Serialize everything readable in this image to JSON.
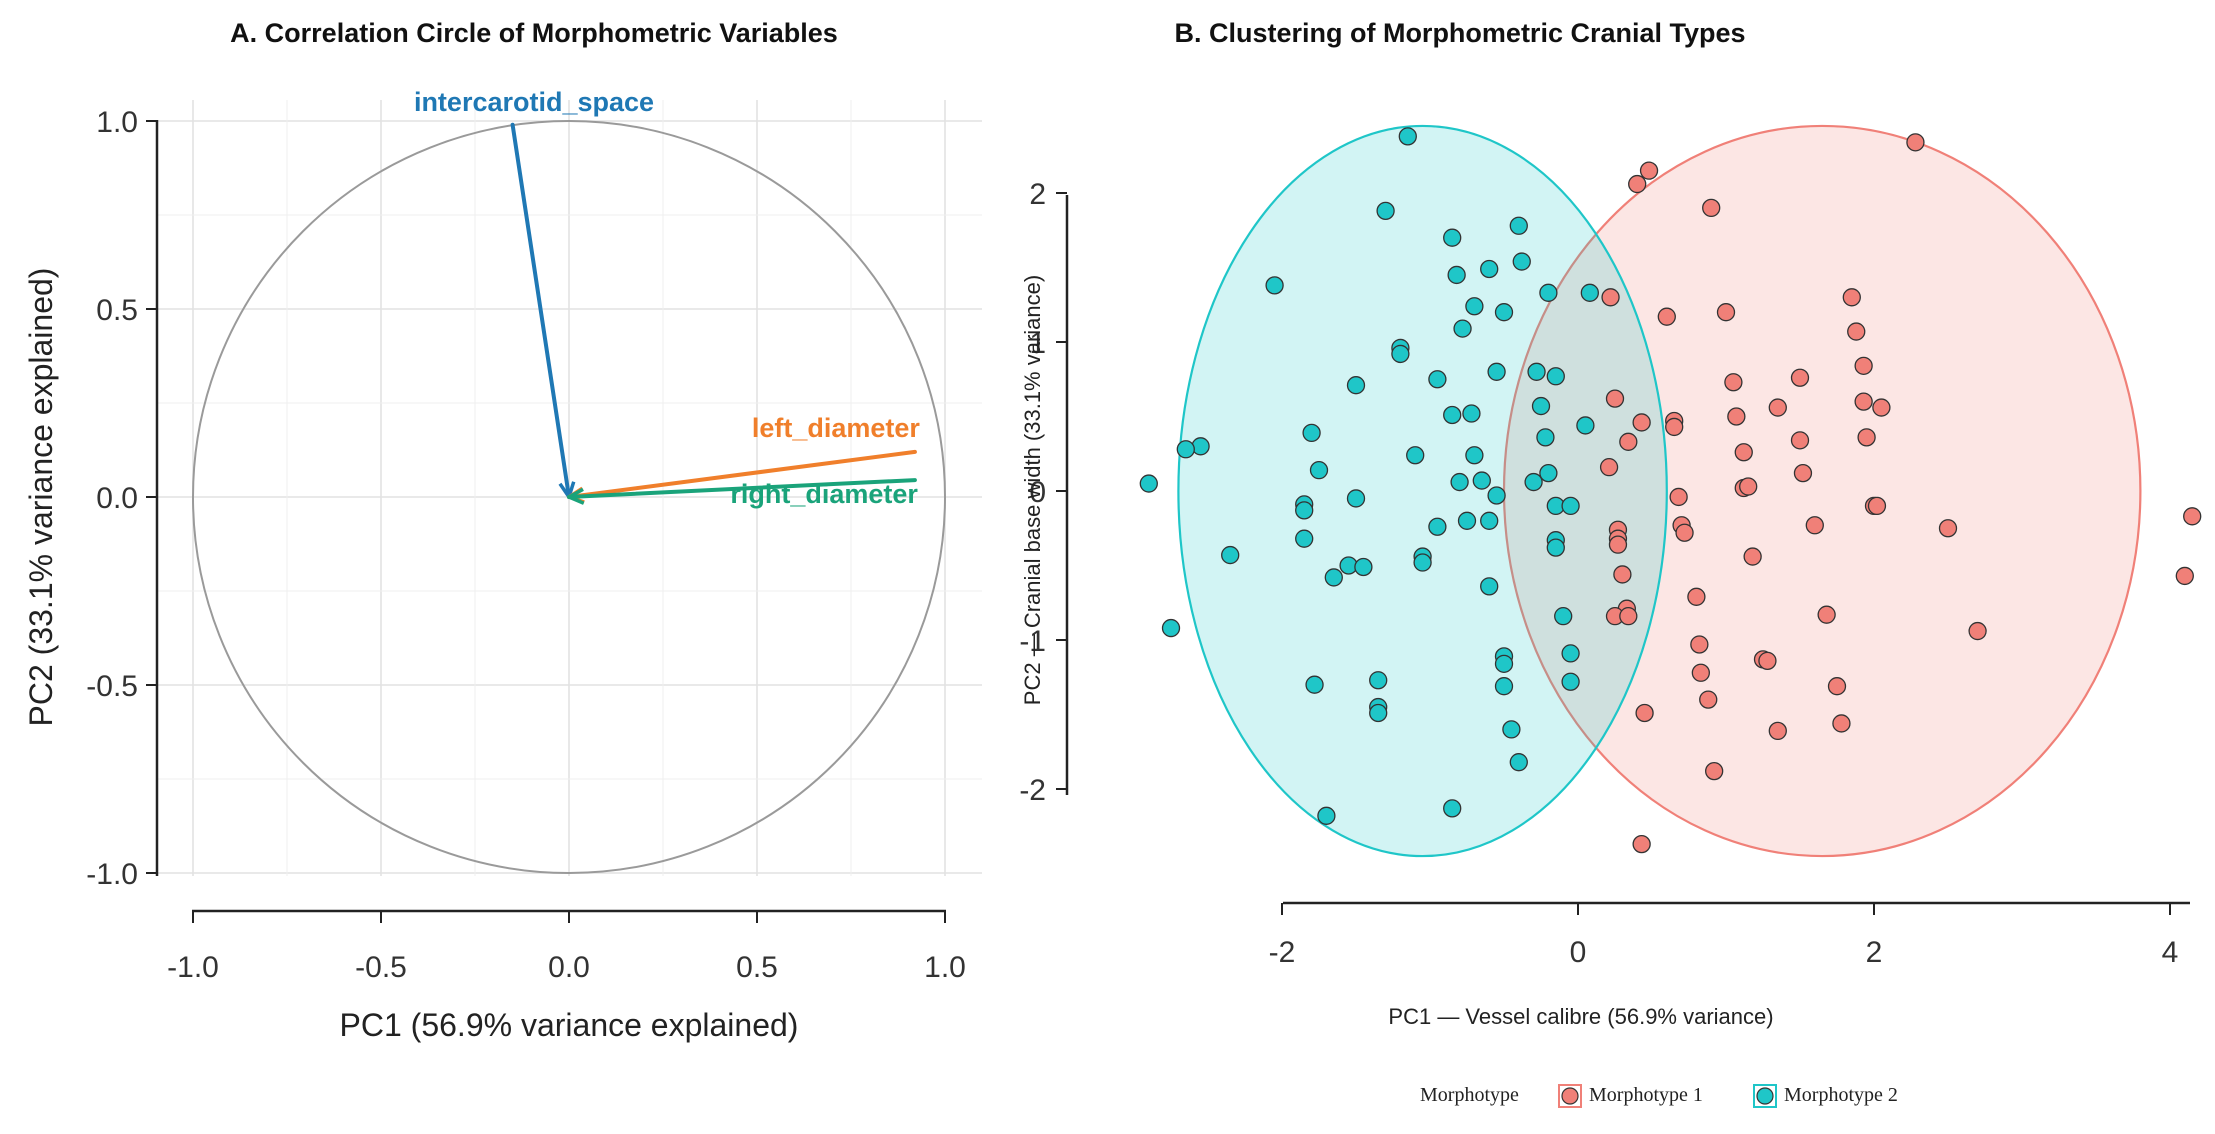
{
  "chart_data": [
    {
      "type": "scatter",
      "subtype": "correlation-circle",
      "title": "A. Correlation Circle of Morphometric Variables",
      "xlabel": "PC1 (56.9% variance explained)",
      "ylabel": "PC2 (33.1% variance explained)",
      "xlim": [
        -1.1,
        1.1
      ],
      "ylim": [
        -1.0,
        1.0
      ],
      "x_ticks": [
        "-1.0",
        "-0.5",
        "0.0",
        "0.5",
        "1.0"
      ],
      "y_ticks": [
        "1.0",
        "0.5",
        "0.0",
        "-0.5",
        "-1.0"
      ],
      "grid": true,
      "vectors": [
        {
          "name": "intercarotid_space",
          "x": -0.15,
          "y": 0.99,
          "color": "#1f78b4"
        },
        {
          "name": "left_diameter",
          "x": 0.92,
          "y": 0.12,
          "color": "#f07f2b"
        },
        {
          "name": "right_diameter",
          "x": 0.92,
          "y": 0.045,
          "color": "#1aa37a"
        }
      ]
    },
    {
      "type": "scatter",
      "title": "B. Clustering of Morphometric Cranial Types",
      "xlabel": "PC1 — Vessel calibre (56.9% variance)",
      "ylabel": "PC2 — Cranial base width (33.1% variance)",
      "xlim": [
        -3.0,
        4.2
      ],
      "ylim": [
        -2.5,
        2.5
      ],
      "x_ticks": [
        "-2",
        "0",
        "2",
        "4"
      ],
      "y_ticks": [
        "2",
        "1",
        "0",
        "-1",
        "-2"
      ],
      "grid": false,
      "legend": {
        "title": "Morphotype",
        "position": "bottom"
      },
      "series": [
        {
          "name": "Morphotype 1",
          "color": "#f08078",
          "ellipse": {
            "cx": 1.65,
            "cy": 0.0,
            "rx": 2.15,
            "ry": 2.45
          },
          "points": [
            [
              2.28,
              2.34
            ],
            [
              0.4,
              2.06
            ],
            [
              0.48,
              2.15
            ],
            [
              0.9,
              1.9
            ],
            [
              1.0,
              1.2
            ],
            [
              0.22,
              1.3
            ],
            [
              1.85,
              1.3
            ],
            [
              1.88,
              1.07
            ],
            [
              0.6,
              1.17
            ],
            [
              1.05,
              0.73
            ],
            [
              1.5,
              0.76
            ],
            [
              1.93,
              0.84
            ],
            [
              0.25,
              0.62
            ],
            [
              1.07,
              0.5
            ],
            [
              1.93,
              0.6
            ],
            [
              2.05,
              0.56
            ],
            [
              1.35,
              0.56
            ],
            [
              0.43,
              0.46
            ],
            [
              0.65,
              0.47
            ],
            [
              1.5,
              0.34
            ],
            [
              1.95,
              0.36
            ],
            [
              0.34,
              0.33
            ],
            [
              0.65,
              0.43
            ],
            [
              1.12,
              0.26
            ],
            [
              1.52,
              0.12
            ],
            [
              0.21,
              0.16
            ],
            [
              1.12,
              0.02
            ],
            [
              1.15,
              0.03
            ],
            [
              0.68,
              -0.04
            ],
            [
              2.0,
              -0.1
            ],
            [
              2.02,
              -0.1
            ],
            [
              1.6,
              -0.23
            ],
            [
              0.27,
              -0.26
            ],
            [
              0.27,
              -0.32
            ],
            [
              0.7,
              -0.23
            ],
            [
              0.72,
              -0.28
            ],
            [
              2.5,
              -0.25
            ],
            [
              0.27,
              -0.36
            ],
            [
              0.3,
              -0.56
            ],
            [
              1.18,
              -0.44
            ],
            [
              0.8,
              -0.71
            ],
            [
              0.33,
              -0.79
            ],
            [
              0.25,
              -0.84
            ],
            [
              0.34,
              -0.84
            ],
            [
              1.68,
              -0.83
            ],
            [
              1.25,
              -1.13
            ],
            [
              1.28,
              -1.14
            ],
            [
              0.82,
              -1.03
            ],
            [
              2.7,
              -0.94
            ],
            [
              0.83,
              -1.22
            ],
            [
              1.75,
              -1.31
            ],
            [
              0.88,
              -1.4
            ],
            [
              0.45,
              -1.49
            ],
            [
              1.78,
              -1.56
            ],
            [
              1.35,
              -1.61
            ],
            [
              0.92,
              -1.88
            ],
            [
              0.43,
              -2.37
            ],
            [
              4.15,
              -0.17
            ],
            [
              4.1,
              -0.57
            ]
          ]
        },
        {
          "name": "Morphotype 2",
          "color": "#1fc6c8",
          "ellipse": {
            "cx": -1.05,
            "cy": 0.0,
            "rx": 1.65,
            "ry": 2.45
          },
          "points": [
            [
              -1.15,
              2.38
            ],
            [
              -1.3,
              1.88
            ],
            [
              -0.85,
              1.7
            ],
            [
              -0.4,
              1.78
            ],
            [
              -0.38,
              1.54
            ],
            [
              -0.82,
              1.45
            ],
            [
              -0.6,
              1.49
            ],
            [
              -2.05,
              1.38
            ],
            [
              -0.2,
              1.33
            ],
            [
              0.08,
              1.33
            ],
            [
              -0.7,
              1.24
            ],
            [
              -0.5,
              1.2
            ],
            [
              -0.78,
              1.09
            ],
            [
              -1.2,
              0.96
            ],
            [
              -1.2,
              0.92
            ],
            [
              -1.5,
              0.71
            ],
            [
              -0.95,
              0.75
            ],
            [
              -0.55,
              0.8
            ],
            [
              -0.28,
              0.8
            ],
            [
              -0.15,
              0.77
            ],
            [
              -0.25,
              0.57
            ],
            [
              0.05,
              0.44
            ],
            [
              -0.85,
              0.51
            ],
            [
              -0.72,
              0.52
            ],
            [
              -1.8,
              0.39
            ],
            [
              -2.55,
              0.3
            ],
            [
              -2.65,
              0.28
            ],
            [
              -0.22,
              0.36
            ],
            [
              -0.7,
              0.24
            ],
            [
              -1.1,
              0.24
            ],
            [
              -1.75,
              0.14
            ],
            [
              -0.2,
              0.12
            ],
            [
              -0.8,
              0.06
            ],
            [
              -0.65,
              0.07
            ],
            [
              -0.3,
              0.06
            ],
            [
              -2.9,
              0.05
            ],
            [
              -1.5,
              -0.05
            ],
            [
              -0.55,
              -0.03
            ],
            [
              -0.15,
              -0.1
            ],
            [
              -0.05,
              -0.1
            ],
            [
              -1.85,
              -0.09
            ],
            [
              -1.85,
              -0.13
            ],
            [
              -0.75,
              -0.2
            ],
            [
              -0.6,
              -0.2
            ],
            [
              -0.95,
              -0.24
            ],
            [
              -1.85,
              -0.32
            ],
            [
              -0.15,
              -0.33
            ],
            [
              -0.15,
              -0.38
            ],
            [
              -2.35,
              -0.43
            ],
            [
              -1.05,
              -0.44
            ],
            [
              -1.05,
              -0.48
            ],
            [
              -1.55,
              -0.5
            ],
            [
              -1.65,
              -0.58
            ],
            [
              -1.45,
              -0.51
            ],
            [
              -0.6,
              -0.64
            ],
            [
              -0.1,
              -0.84
            ],
            [
              -2.75,
              -0.92
            ],
            [
              -0.5,
              -1.11
            ],
            [
              -0.5,
              -1.16
            ],
            [
              -0.05,
              -1.09
            ],
            [
              -1.35,
              -1.27
            ],
            [
              -1.78,
              -1.3
            ],
            [
              -0.5,
              -1.31
            ],
            [
              -0.05,
              -1.28
            ],
            [
              -1.35,
              -1.45
            ],
            [
              -1.35,
              -1.49
            ],
            [
              -0.45,
              -1.6
            ],
            [
              -0.4,
              -1.82
            ],
            [
              -0.85,
              -2.13
            ],
            [
              -1.7,
              -2.18
            ]
          ]
        }
      ]
    }
  ]
}
